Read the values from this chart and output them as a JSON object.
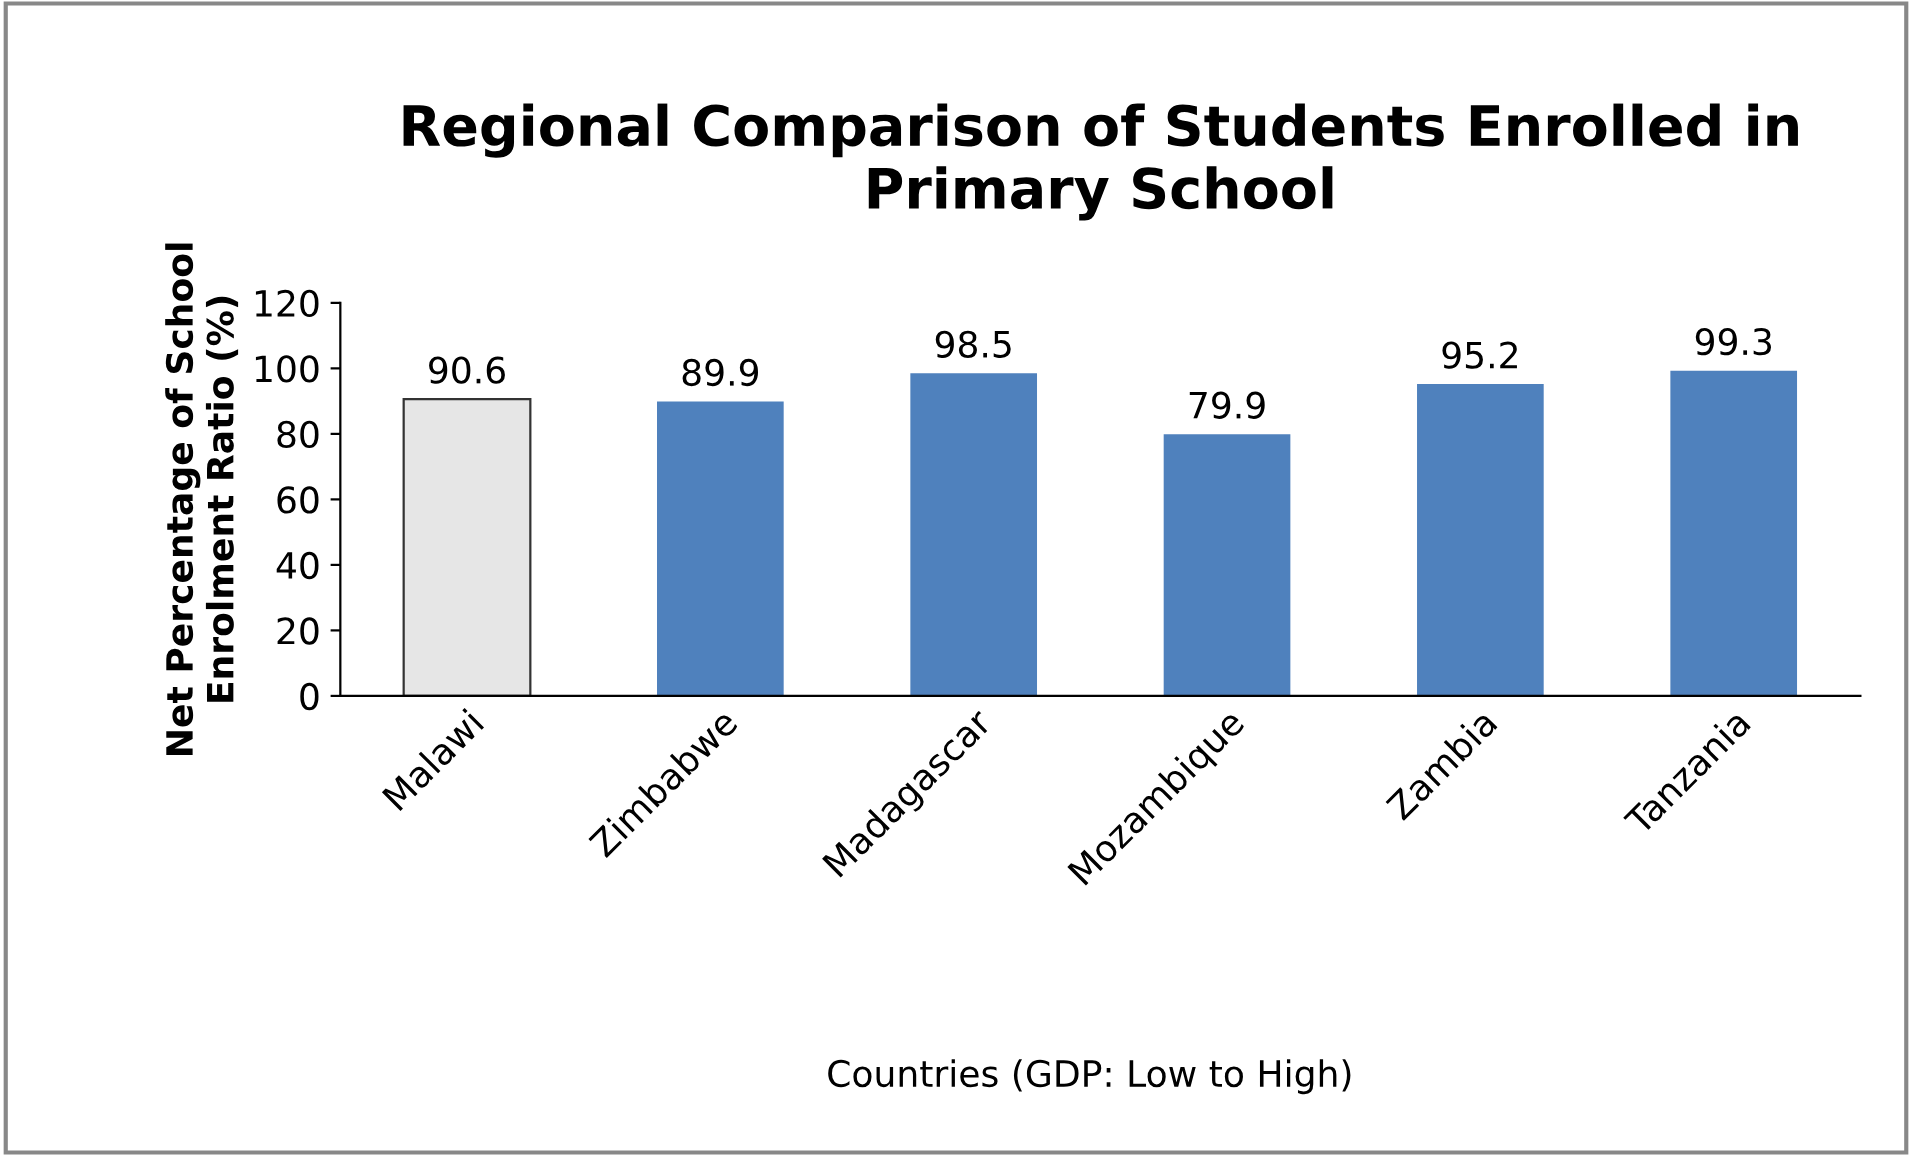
{
  "chart_data": {
    "type": "bar",
    "title": "Regional Comparison of Students Enrolled in\nPrimary School",
    "xlabel": "Countries (GDP: Low to High)",
    "ylabel": "Net Percentage of School\nEnrolment Ratio (%)",
    "categories": [
      "Malawi",
      "Zimbabwe",
      "Madagascar",
      "Mozambique",
      "Zambia",
      "Tanzania"
    ],
    "values": [
      90.6,
      89.9,
      98.5,
      79.9,
      95.2,
      99.3
    ],
    "colors": [
      "#e6e6e6",
      "#4f81bd",
      "#4f81bd",
      "#4f81bd",
      "#4f81bd",
      "#4f81bd"
    ],
    "ylim": [
      0,
      120
    ],
    "yticks": [
      0,
      20,
      40,
      60,
      80,
      100,
      120
    ],
    "grid": false,
    "legend": false,
    "data_labels": true
  }
}
